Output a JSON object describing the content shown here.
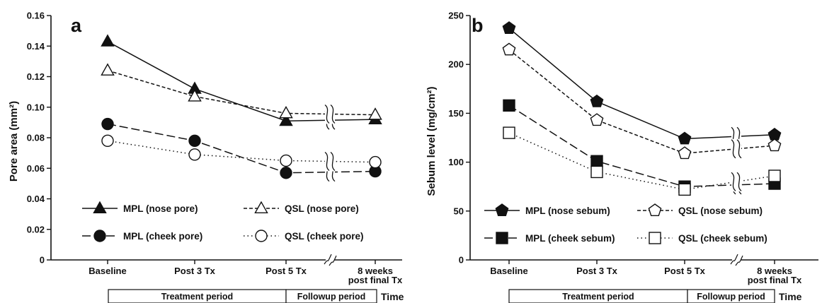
{
  "chart_data": [
    {
      "type": "line",
      "panel_label": "a",
      "ylabel": "Pore area (mm²)",
      "ylim": [
        0,
        0.16
      ],
      "yticks": [
        "0",
        "0.02",
        "0.04",
        "0.06",
        "0.08",
        "0.10",
        "0.12",
        "0.14",
        "0.16"
      ],
      "categories": [
        "Baseline",
        "Post 3 Tx",
        "Post 5 Tx",
        "8 weeks post final Tx"
      ],
      "category_lines": [
        [
          "Baseline"
        ],
        [
          "Post 3 Tx"
        ],
        [
          "Post 5 Tx"
        ],
        [
          "8 weeks",
          "post final Tx"
        ]
      ],
      "xlabel": "Time",
      "axis_break": "between Post 5 Tx and 8 weeks",
      "periods": [
        "Treatment period",
        "Followup period"
      ],
      "legend_position": "bottom",
      "series": [
        {
          "name": "MPL  (nose pore)",
          "marker": "triangle",
          "fill": "filled",
          "line": "solid",
          "values": [
            0.143,
            0.112,
            0.091,
            0.092
          ]
        },
        {
          "name": "QSL  (nose pore)",
          "marker": "triangle",
          "fill": "open",
          "line": "dashed",
          "values": [
            0.124,
            0.107,
            0.096,
            0.095
          ]
        },
        {
          "name": "MPL  (cheek pore)",
          "marker": "circle",
          "fill": "filled",
          "line": "longdash",
          "values": [
            0.089,
            0.078,
            0.057,
            0.058
          ]
        },
        {
          "name": "QSL  (cheek pore)",
          "marker": "circle",
          "fill": "open",
          "line": "dotted",
          "values": [
            0.078,
            0.069,
            0.065,
            0.064
          ]
        }
      ]
    },
    {
      "type": "line",
      "panel_label": "b",
      "ylabel": "Sebum level (mg/cm²)",
      "ylim": [
        0,
        250
      ],
      "yticks": [
        "0",
        "50",
        "100",
        "150",
        "200",
        "250"
      ],
      "categories": [
        "Baseline",
        "Post 3 Tx",
        "Post 5 Tx",
        "8 weeks post final Tx"
      ],
      "category_lines": [
        [
          "Baseline"
        ],
        [
          "Post 3 Tx"
        ],
        [
          "Post 5 Tx"
        ],
        [
          "8 weeks",
          "post final Tx"
        ]
      ],
      "xlabel": "Time",
      "axis_break": "between Post 5 Tx and 8 weeks",
      "periods": [
        "Treatment period",
        "Followup period"
      ],
      "legend_position": "bottom",
      "series": [
        {
          "name": "MPL  (nose sebum)",
          "marker": "pentagon",
          "fill": "filled",
          "line": "solid",
          "values": [
            237,
            162,
            124,
            128
          ]
        },
        {
          "name": "QSL  (nose sebum)",
          "marker": "pentagon",
          "fill": "open",
          "line": "dashed",
          "values": [
            215,
            143,
            109,
            117
          ]
        },
        {
          "name": "MPL  (cheek sebum)",
          "marker": "square",
          "fill": "filled",
          "line": "longdash",
          "values": [
            158,
            101,
            75,
            78
          ]
        },
        {
          "name": "QSL  (cheek sebum)",
          "marker": "square",
          "fill": "open",
          "line": "dotted",
          "values": [
            130,
            90,
            72,
            86
          ]
        }
      ]
    }
  ]
}
